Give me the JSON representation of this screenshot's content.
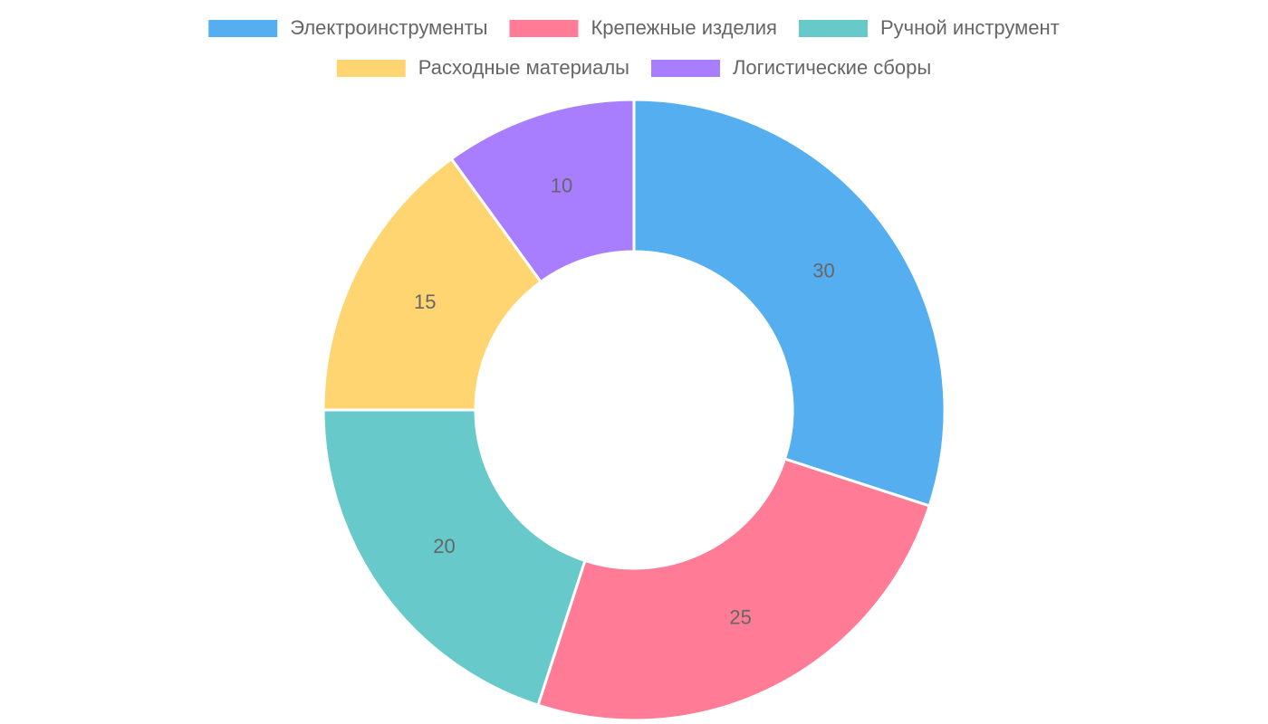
{
  "chart_data": {
    "type": "doughnut",
    "categories": [
      "Электроинструменты",
      "Крепежные изделия",
      "Ручной инструмент",
      "Расходные материалы",
      "Логистические сборы"
    ],
    "values": [
      30,
      25,
      20,
      15,
      10
    ],
    "colors": [
      "#54aef0",
      "#ff7b96",
      "#67c9c9",
      "#ffd572",
      "#a87eff"
    ],
    "legend": "top"
  }
}
